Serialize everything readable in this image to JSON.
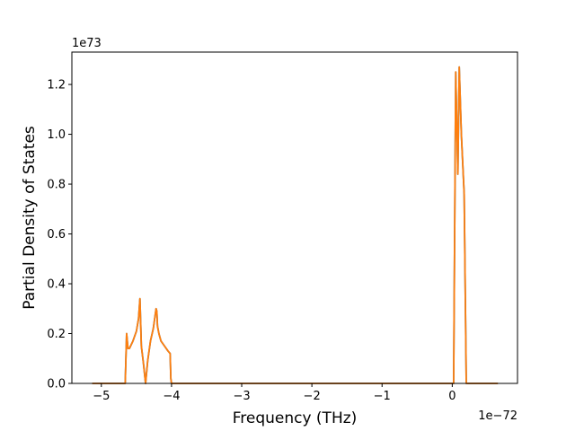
{
  "chart_data": {
    "type": "line",
    "xlabel": "Frequency (THz)",
    "ylabel": "Partial Density of States",
    "x_offset_text": "1e−72",
    "y_offset_text": "1e73",
    "xlim": [
      -5.42,
      0.93
    ],
    "ylim": [
      0,
      1.33
    ],
    "xticks": [
      -5,
      -4,
      -3,
      -2,
      -1,
      0
    ],
    "xtick_labels": [
      "−5",
      "−4",
      "−3",
      "−2",
      "−1",
      "0"
    ],
    "yticks": [
      0.0,
      0.2,
      0.4,
      0.6,
      0.8,
      1.0,
      1.2
    ],
    "ytick_labels": [
      "0.0",
      "0.2",
      "0.4",
      "0.6",
      "0.8",
      "1.0",
      "1.2"
    ],
    "grid": false,
    "series": [
      {
        "color": "#1f77b4",
        "x": [
          -5.13,
          -4.66,
          -4.65,
          -4.64,
          -4.62,
          -4.6,
          -4.55,
          -4.5,
          -4.47,
          -4.45,
          -4.43,
          -4.4,
          -4.37,
          -4.34,
          -4.3,
          -4.26,
          -4.22,
          -4.21,
          -4.2,
          -4.18,
          -4.15,
          -4.1,
          -4.05,
          -4.02,
          -4.01,
          -4.0,
          0.0,
          0.02,
          0.05,
          0.08,
          0.1,
          0.13,
          0.17,
          0.2,
          0.65
        ],
        "y": [
          0.0,
          0.0,
          0.1,
          0.2,
          0.14,
          0.14,
          0.17,
          0.21,
          0.26,
          0.34,
          0.15,
          0.08,
          0.0,
          0.09,
          0.17,
          0.22,
          0.3,
          0.29,
          0.23,
          0.2,
          0.17,
          0.15,
          0.13,
          0.12,
          0.02,
          0.0,
          0.0,
          0.0,
          1.25,
          0.84,
          1.27,
          1.0,
          0.76,
          0.0,
          0.0
        ]
      },
      {
        "color": "#ff7f0e",
        "x": [
          -5.13,
          -4.66,
          -4.65,
          -4.64,
          -4.62,
          -4.6,
          -4.55,
          -4.5,
          -4.47,
          -4.45,
          -4.43,
          -4.4,
          -4.37,
          -4.34,
          -4.3,
          -4.26,
          -4.22,
          -4.21,
          -4.2,
          -4.18,
          -4.15,
          -4.1,
          -4.05,
          -4.02,
          -4.01,
          -4.0,
          0.0,
          0.02,
          0.05,
          0.08,
          0.1,
          0.13,
          0.17,
          0.2,
          0.65
        ],
        "y": [
          0.0,
          0.0,
          0.1,
          0.2,
          0.14,
          0.14,
          0.17,
          0.21,
          0.26,
          0.34,
          0.15,
          0.08,
          0.0,
          0.09,
          0.17,
          0.22,
          0.3,
          0.29,
          0.23,
          0.2,
          0.17,
          0.15,
          0.13,
          0.12,
          0.02,
          0.0,
          0.0,
          0.0,
          1.25,
          0.84,
          1.27,
          1.0,
          0.76,
          0.0,
          0.0
        ]
      }
    ]
  }
}
